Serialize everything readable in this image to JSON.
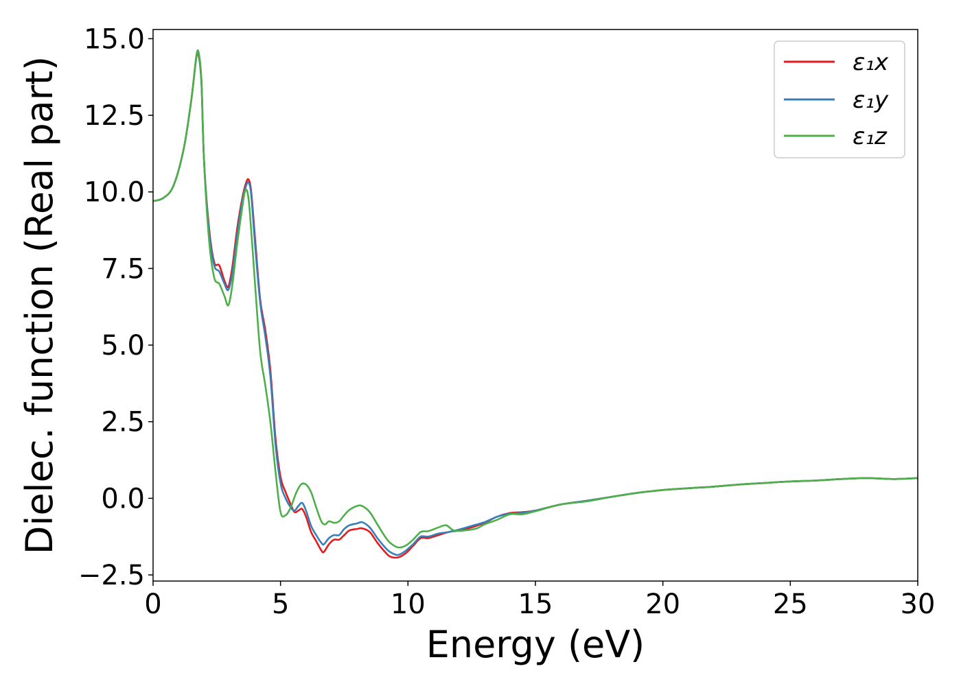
{
  "chart_data": {
    "type": "line",
    "xlabel": "Energy (eV)",
    "ylabel": "Dielec. function (Real part)",
    "xlim": [
      0,
      30
    ],
    "ylim": [
      -2.7,
      15.3
    ],
    "xticks": [
      0,
      5,
      10,
      15,
      20,
      25,
      30
    ],
    "xtick_labels": [
      "0",
      "5",
      "10",
      "15",
      "20",
      "25",
      "30"
    ],
    "yticks": [
      -2.5,
      0.0,
      2.5,
      5.0,
      7.5,
      10.0,
      12.5,
      15.0
    ],
    "ytick_labels": [
      "−2.5",
      "0.0",
      "2.5",
      "5.0",
      "7.5",
      "10.0",
      "12.5",
      "15.0"
    ],
    "grid": false,
    "legend_position": "top-right",
    "series": [
      {
        "name": "ε₁x",
        "color": "#e41a1c",
        "points": [
          [
            0,
            9.7
          ],
          [
            0.4,
            9.8
          ],
          [
            0.8,
            10.2
          ],
          [
            1.2,
            11.4
          ],
          [
            1.5,
            13.0
          ],
          [
            1.7,
            14.4
          ],
          [
            1.8,
            14.4
          ],
          [
            1.9,
            13.5
          ],
          [
            2.0,
            11.0
          ],
          [
            2.2,
            8.8
          ],
          [
            2.4,
            7.7
          ],
          [
            2.6,
            7.6
          ],
          [
            2.8,
            7.1
          ],
          [
            2.95,
            6.9
          ],
          [
            3.1,
            7.5
          ],
          [
            3.3,
            8.8
          ],
          [
            3.5,
            9.8
          ],
          [
            3.65,
            10.3
          ],
          [
            3.75,
            10.4
          ],
          [
            3.85,
            10.0
          ],
          [
            4.0,
            8.5
          ],
          [
            4.2,
            6.5
          ],
          [
            4.4,
            5.5
          ],
          [
            4.6,
            4.2
          ],
          [
            4.8,
            2.0
          ],
          [
            5.0,
            0.7
          ],
          [
            5.2,
            0.2
          ],
          [
            5.4,
            -0.2
          ],
          [
            5.55,
            -0.45
          ],
          [
            5.7,
            -0.4
          ],
          [
            5.85,
            -0.35
          ],
          [
            6.0,
            -0.6
          ],
          [
            6.2,
            -1.1
          ],
          [
            6.4,
            -1.4
          ],
          [
            6.6,
            -1.7
          ],
          [
            6.7,
            -1.75
          ],
          [
            6.9,
            -1.5
          ],
          [
            7.1,
            -1.35
          ],
          [
            7.3,
            -1.35
          ],
          [
            7.5,
            -1.2
          ],
          [
            7.7,
            -1.05
          ],
          [
            8.0,
            -1.0
          ],
          [
            8.2,
            -0.98
          ],
          [
            8.5,
            -1.1
          ],
          [
            8.8,
            -1.45
          ],
          [
            9.1,
            -1.75
          ],
          [
            9.3,
            -1.9
          ],
          [
            9.6,
            -1.93
          ],
          [
            9.9,
            -1.8
          ],
          [
            10.2,
            -1.55
          ],
          [
            10.5,
            -1.3
          ],
          [
            10.8,
            -1.3
          ],
          [
            11.2,
            -1.2
          ],
          [
            11.6,
            -1.1
          ],
          [
            12.0,
            -1.05
          ],
          [
            12.5,
            -0.95
          ],
          [
            13.0,
            -0.8
          ],
          [
            13.5,
            -0.6
          ],
          [
            14.0,
            -0.48
          ],
          [
            14.5,
            -0.45
          ],
          [
            15,
            -0.4
          ],
          [
            16,
            -0.2
          ],
          [
            17,
            -0.08
          ],
          [
            18,
            0.05
          ],
          [
            19,
            0.18
          ],
          [
            20,
            0.27
          ],
          [
            21,
            0.33
          ],
          [
            22,
            0.38
          ],
          [
            23,
            0.45
          ],
          [
            24,
            0.5
          ],
          [
            25,
            0.55
          ],
          [
            26,
            0.58
          ],
          [
            27,
            0.63
          ],
          [
            28,
            0.66
          ],
          [
            29,
            0.63
          ],
          [
            30,
            0.66
          ]
        ]
      },
      {
        "name": "ε₁y",
        "color": "#377eb8",
        "points": [
          [
            0,
            9.7
          ],
          [
            0.4,
            9.8
          ],
          [
            0.8,
            10.2
          ],
          [
            1.2,
            11.4
          ],
          [
            1.5,
            13.0
          ],
          [
            1.7,
            14.4
          ],
          [
            1.8,
            14.45
          ],
          [
            1.9,
            13.5
          ],
          [
            2.0,
            11.0
          ],
          [
            2.2,
            8.7
          ],
          [
            2.4,
            7.6
          ],
          [
            2.6,
            7.4
          ],
          [
            2.8,
            7.0
          ],
          [
            2.95,
            6.8
          ],
          [
            3.1,
            7.3
          ],
          [
            3.3,
            8.6
          ],
          [
            3.5,
            9.7
          ],
          [
            3.65,
            10.2
          ],
          [
            3.75,
            10.3
          ],
          [
            3.85,
            9.9
          ],
          [
            4.0,
            8.3
          ],
          [
            4.2,
            6.4
          ],
          [
            4.4,
            5.3
          ],
          [
            4.6,
            4.0
          ],
          [
            4.8,
            1.8
          ],
          [
            5.0,
            0.5
          ],
          [
            5.2,
            0.0
          ],
          [
            5.4,
            -0.3
          ],
          [
            5.55,
            -0.4
          ],
          [
            5.7,
            -0.25
          ],
          [
            5.85,
            -0.15
          ],
          [
            6.0,
            -0.4
          ],
          [
            6.2,
            -0.9
          ],
          [
            6.4,
            -1.2
          ],
          [
            6.6,
            -1.45
          ],
          [
            6.7,
            -1.5
          ],
          [
            6.9,
            -1.3
          ],
          [
            7.1,
            -1.2
          ],
          [
            7.3,
            -1.2
          ],
          [
            7.5,
            -1.0
          ],
          [
            7.7,
            -0.88
          ],
          [
            8.0,
            -0.82
          ],
          [
            8.2,
            -0.78
          ],
          [
            8.5,
            -0.95
          ],
          [
            8.8,
            -1.3
          ],
          [
            9.1,
            -1.6
          ],
          [
            9.3,
            -1.75
          ],
          [
            9.6,
            -1.85
          ],
          [
            9.9,
            -1.72
          ],
          [
            10.2,
            -1.5
          ],
          [
            10.5,
            -1.25
          ],
          [
            10.8,
            -1.25
          ],
          [
            11.2,
            -1.15
          ],
          [
            11.6,
            -1.1
          ],
          [
            12.0,
            -1.02
          ],
          [
            12.5,
            -0.9
          ],
          [
            13.0,
            -0.78
          ],
          [
            13.5,
            -0.6
          ],
          [
            14.0,
            -0.5
          ],
          [
            14.5,
            -0.47
          ],
          [
            15,
            -0.4
          ],
          [
            16,
            -0.2
          ],
          [
            17,
            -0.08
          ],
          [
            18,
            0.05
          ],
          [
            19,
            0.18
          ],
          [
            20,
            0.27
          ],
          [
            21,
            0.33
          ],
          [
            22,
            0.38
          ],
          [
            23,
            0.45
          ],
          [
            24,
            0.5
          ],
          [
            25,
            0.55
          ],
          [
            26,
            0.58
          ],
          [
            27,
            0.63
          ],
          [
            28,
            0.66
          ],
          [
            29,
            0.63
          ],
          [
            30,
            0.66
          ]
        ]
      },
      {
        "name": "ε₁z",
        "color": "#4daf4a",
        "points": [
          [
            0,
            9.7
          ],
          [
            0.4,
            9.8
          ],
          [
            0.8,
            10.2
          ],
          [
            1.2,
            11.4
          ],
          [
            1.5,
            13.0
          ],
          [
            1.7,
            14.45
          ],
          [
            1.8,
            14.5
          ],
          [
            1.9,
            13.6
          ],
          [
            2.0,
            11.0
          ],
          [
            2.2,
            8.4
          ],
          [
            2.4,
            7.2
          ],
          [
            2.6,
            7.0
          ],
          [
            2.8,
            6.6
          ],
          [
            2.95,
            6.3
          ],
          [
            3.1,
            6.9
          ],
          [
            3.3,
            8.3
          ],
          [
            3.5,
            9.5
          ],
          [
            3.6,
            10.0
          ],
          [
            3.7,
            10.0
          ],
          [
            3.8,
            9.3
          ],
          [
            4.0,
            7.0
          ],
          [
            4.2,
            4.8
          ],
          [
            4.4,
            3.7
          ],
          [
            4.6,
            2.5
          ],
          [
            4.8,
            0.9
          ],
          [
            5.0,
            -0.45
          ],
          [
            5.2,
            -0.55
          ],
          [
            5.4,
            -0.3
          ],
          [
            5.6,
            0.15
          ],
          [
            5.8,
            0.45
          ],
          [
            6.0,
            0.45
          ],
          [
            6.2,
            0.2
          ],
          [
            6.4,
            -0.3
          ],
          [
            6.6,
            -0.75
          ],
          [
            6.75,
            -0.85
          ],
          [
            6.9,
            -0.75
          ],
          [
            7.1,
            -0.8
          ],
          [
            7.3,
            -0.75
          ],
          [
            7.5,
            -0.55
          ],
          [
            7.7,
            -0.38
          ],
          [
            8.0,
            -0.25
          ],
          [
            8.2,
            -0.25
          ],
          [
            8.5,
            -0.45
          ],
          [
            8.8,
            -0.85
          ],
          [
            9.1,
            -1.25
          ],
          [
            9.3,
            -1.45
          ],
          [
            9.6,
            -1.6
          ],
          [
            9.9,
            -1.55
          ],
          [
            10.2,
            -1.35
          ],
          [
            10.5,
            -1.1
          ],
          [
            10.8,
            -1.07
          ],
          [
            11.2,
            -0.95
          ],
          [
            11.5,
            -0.88
          ],
          [
            11.8,
            -1.05
          ],
          [
            12.2,
            -1.05
          ],
          [
            12.7,
            -0.98
          ],
          [
            13.0,
            -0.85
          ],
          [
            13.5,
            -0.7
          ],
          [
            14.0,
            -0.52
          ],
          [
            14.5,
            -0.52
          ],
          [
            15,
            -0.42
          ],
          [
            16,
            -0.2
          ],
          [
            17,
            -0.1
          ],
          [
            18,
            0.05
          ],
          [
            19,
            0.18
          ],
          [
            20,
            0.27
          ],
          [
            21,
            0.33
          ],
          [
            22,
            0.38
          ],
          [
            23,
            0.45
          ],
          [
            24,
            0.5
          ],
          [
            25,
            0.55
          ],
          [
            26,
            0.58
          ],
          [
            27,
            0.63
          ],
          [
            28,
            0.66
          ],
          [
            29,
            0.63
          ],
          [
            30,
            0.66
          ]
        ]
      }
    ]
  }
}
